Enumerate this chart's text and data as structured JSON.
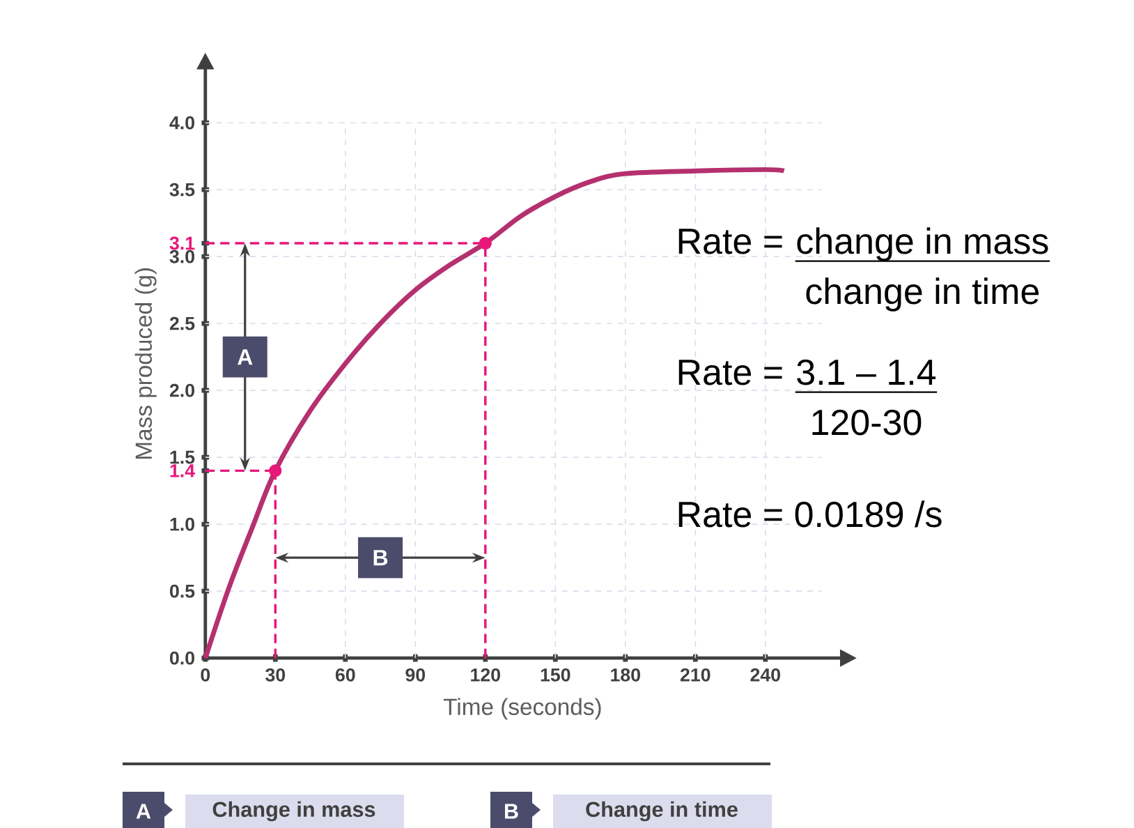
{
  "chart_data": {
    "type": "line",
    "xlabel": "Time (seconds)",
    "ylabel": "Mass produced (g)",
    "xlim": [
      0,
      272
    ],
    "ylim": [
      0,
      4.4
    ],
    "xticks": [
      0,
      30,
      60,
      90,
      120,
      150,
      180,
      210,
      240
    ],
    "yticks": [
      {
        "value": 0,
        "label": "0.0"
      },
      {
        "value": 0.5,
        "label": "0.5"
      },
      {
        "value": 1,
        "label": "1.0"
      },
      1.4,
      {
        "value": 1.5,
        "label": "1.5"
      },
      {
        "value": 2,
        "label": "2.0"
      },
      {
        "value": 2.5,
        "label": "2.5"
      },
      {
        "value": 3,
        "label": "3.0"
      },
      3.1,
      {
        "value": 3.5,
        "label": "3.5"
      },
      {
        "value": 4,
        "label": "4.0"
      }
    ],
    "grid": true,
    "ref_lines": [
      {
        "axis": "y",
        "value": 1.4,
        "color": "#e8177a",
        "line_style": "dashed"
      },
      {
        "axis": "x",
        "value": 30,
        "color": "#e8177a",
        "line_style": "dashed"
      },
      {
        "axis": "y",
        "value": 3.1,
        "color": "#e8177a",
        "line_style": "dashed"
      },
      {
        "axis": "x",
        "value": 120,
        "color": "#e8177a",
        "line_style": "dashed"
      }
    ],
    "series": [
      {
        "color": "#b5306f",
        "x": [
          0,
          10,
          20,
          30,
          45,
          60,
          75,
          90,
          105,
          120,
          135,
          150,
          165,
          180,
          210,
          240,
          248
        ],
        "values": [
          0,
          0.52,
          0.97,
          1.4,
          1.85,
          2.2,
          2.5,
          2.75,
          2.94,
          3.1,
          3.3,
          3.45,
          3.56,
          3.62,
          3.64,
          3.65,
          3.64
        ]
      },
      {
        "type": "scatter",
        "color": "#e8177a",
        "x": [
          30,
          120
        ],
        "values": [
          1.4,
          3.1
        ]
      }
    ],
    "annotations": [
      {
        "text": "A",
        "x": 17,
        "y": 2.25
      },
      {
        "text": "B",
        "x": 75,
        "y": 0.75
      },
      "Change in mass",
      "Change in time",
      "Rate =",
      "change  in mass",
      "change  in time",
      "Rate =",
      "3.1 – 1.4",
      "120-30",
      "Rate = 0.0189 /s",
      "A",
      "B"
    ]
  }
}
